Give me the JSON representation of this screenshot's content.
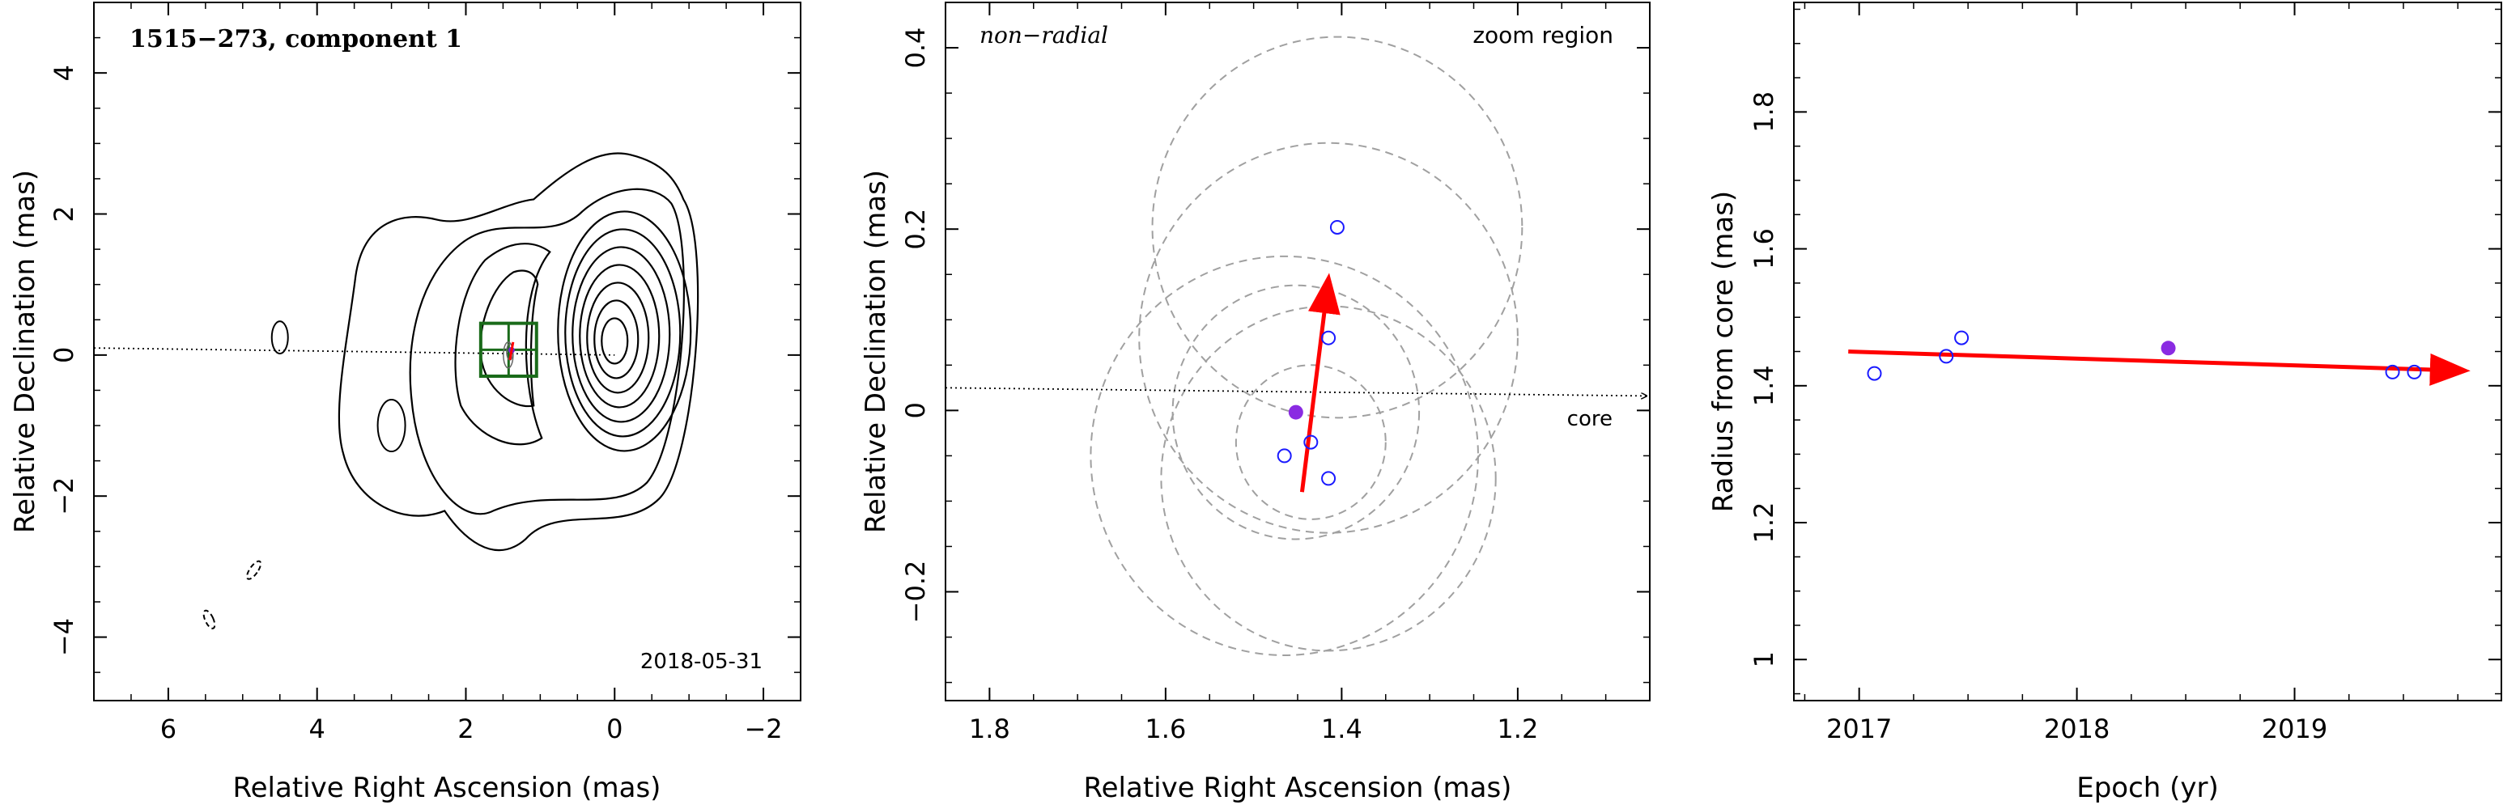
{
  "chart_data": [
    {
      "type": "contour",
      "panel": "vlbi-map",
      "title": "1515−273, component 1",
      "date": "2018-05-31",
      "xlabel": "Relative Right Ascension (mas)",
      "ylabel": "Relative Declination (mas)",
      "xlim": [
        7,
        -2.5
      ],
      "ylim": [
        -4.9,
        5
      ],
      "xticks": [
        6,
        4,
        2,
        0,
        -2
      ],
      "xtick_labels": [
        "6",
        "4",
        "2",
        "0",
        "−2"
      ],
      "yticks": [
        -4,
        -2,
        0,
        2,
        4
      ],
      "ytick_labels": [
        "−4",
        "−2",
        "0",
        "2",
        "4"
      ],
      "core": {
        "x": 0,
        "y": 0.2
      },
      "contour_count": 10,
      "zoom_box": {
        "x": [
          1.05,
          1.8
        ],
        "y": [
          -0.3,
          0.45
        ],
        "color": "#1a6b1a"
      },
      "ridge_line": {
        "from": {
          "x": 7,
          "y": 0.1
        },
        "to": {
          "x": 0,
          "y": 0.0
        }
      }
    },
    {
      "type": "scatter",
      "panel": "zoom",
      "label_left": "non−radial",
      "label_right": "zoom region",
      "xlabel": "Relative Right Ascension (mas)",
      "ylabel": "Relative Declination (mas)",
      "xlim": [
        1.85,
        1.05
      ],
      "ylim": [
        -0.32,
        0.45
      ],
      "xticks": [
        1.8,
        1.6,
        1.4,
        1.2
      ],
      "xtick_labels": [
        "1.8",
        "1.6",
        "1.4",
        "1.2"
      ],
      "yticks": [
        -0.2,
        0,
        0.2,
        0.4
      ],
      "ytick_labels": [
        "−0.2",
        "0",
        "0.2",
        "0.4"
      ],
      "points_open": [
        {
          "x": 1.405,
          "y": 0.202
        },
        {
          "x": 1.415,
          "y": 0.08
        },
        {
          "x": 1.435,
          "y": -0.035
        },
        {
          "x": 1.465,
          "y": -0.05
        },
        {
          "x": 1.415,
          "y": -0.075
        }
      ],
      "points_filled": [
        {
          "x": 1.452,
          "y": -0.002
        }
      ],
      "component_circles": [
        {
          "x": 1.405,
          "y": 0.202,
          "r": 0.21
        },
        {
          "x": 1.415,
          "y": 0.08,
          "r": 0.215
        },
        {
          "x": 1.435,
          "y": -0.035,
          "r": 0.085
        },
        {
          "x": 1.465,
          "y": -0.05,
          "r": 0.22
        },
        {
          "x": 1.415,
          "y": -0.075,
          "r": 0.19
        },
        {
          "x": 1.452,
          "y": -0.002,
          "r": 0.14
        }
      ],
      "velocity_arrow": {
        "from": {
          "x": 1.445,
          "y": -0.09
        },
        "to": {
          "x": 1.415,
          "y": 0.145
        },
        "color": "#ff0000"
      },
      "core_direction": {
        "from": {
          "x": 1.85,
          "y": 0.025
        },
        "to": {
          "x": 1.05,
          "y": 0.016
        }
      },
      "core_label": "core"
    },
    {
      "type": "scatter",
      "panel": "radius",
      "xlabel": "Epoch (yr)",
      "ylabel": "Radius from core (mas)",
      "xlim": [
        2016.7,
        2019.95
      ],
      "ylim": [
        0.94,
        1.96
      ],
      "xticks": [
        2017,
        2018,
        2019
      ],
      "xtick_labels": [
        "2017",
        "2018",
        "2019"
      ],
      "yticks": [
        1,
        1.2,
        1.4,
        1.6,
        1.8
      ],
      "ytick_labels": [
        "1",
        "1.2",
        "1.4",
        "1.6",
        "1.8"
      ],
      "points_open": [
        {
          "x": 2017.07,
          "y": 1.418
        },
        {
          "x": 2017.4,
          "y": 1.443
        },
        {
          "x": 2017.47,
          "y": 1.47
        },
        {
          "x": 2019.45,
          "y": 1.42
        },
        {
          "x": 2019.55,
          "y": 1.42
        }
      ],
      "points_filled": [
        {
          "x": 2018.42,
          "y": 1.455
        }
      ],
      "fit_arrow": {
        "from": {
          "x": 2016.95,
          "y": 1.45
        },
        "to": {
          "x": 2019.78,
          "y": 1.422
        },
        "color": "#ff0000"
      }
    }
  ]
}
